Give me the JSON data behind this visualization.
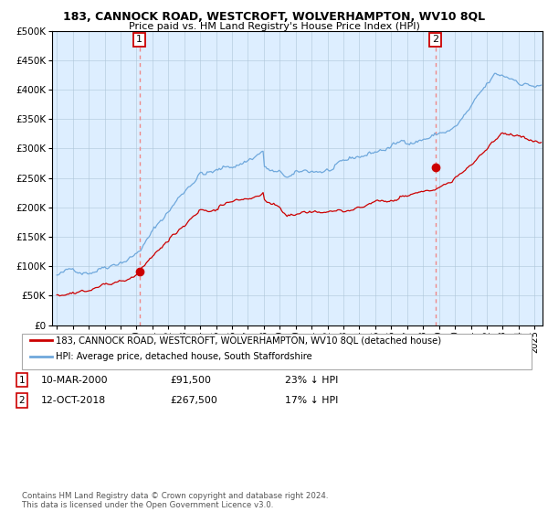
{
  "title": "183, CANNOCK ROAD, WESTCROFT, WOLVERHAMPTON, WV10 8QL",
  "subtitle": "Price paid vs. HM Land Registry's House Price Index (HPI)",
  "legend_line1": "183, CANNOCK ROAD, WESTCROFT, WOLVERHAMPTON, WV10 8QL (detached house)",
  "legend_line2": "HPI: Average price, detached house, South Staffordshire",
  "annotation1_date": "10-MAR-2000",
  "annotation1_price": "£91,500",
  "annotation1_hpi": "23% ↓ HPI",
  "annotation2_date": "12-OCT-2018",
  "annotation2_price": "£267,500",
  "annotation2_hpi": "17% ↓ HPI",
  "footer": "Contains HM Land Registry data © Crown copyright and database right 2024.\nThis data is licensed under the Open Government Licence v3.0.",
  "hpi_color": "#6fa8dc",
  "price_color": "#cc0000",
  "dot_color": "#cc0000",
  "vline_color": "#ee8888",
  "plot_bg": "#ddeeff",
  "ylim": [
    0,
    500000
  ],
  "xlim_start": 1994.7,
  "xlim_end": 2025.5,
  "sale1_x": 2000.19,
  "sale1_y": 91500,
  "sale2_x": 2018.78,
  "sale2_y": 267500
}
